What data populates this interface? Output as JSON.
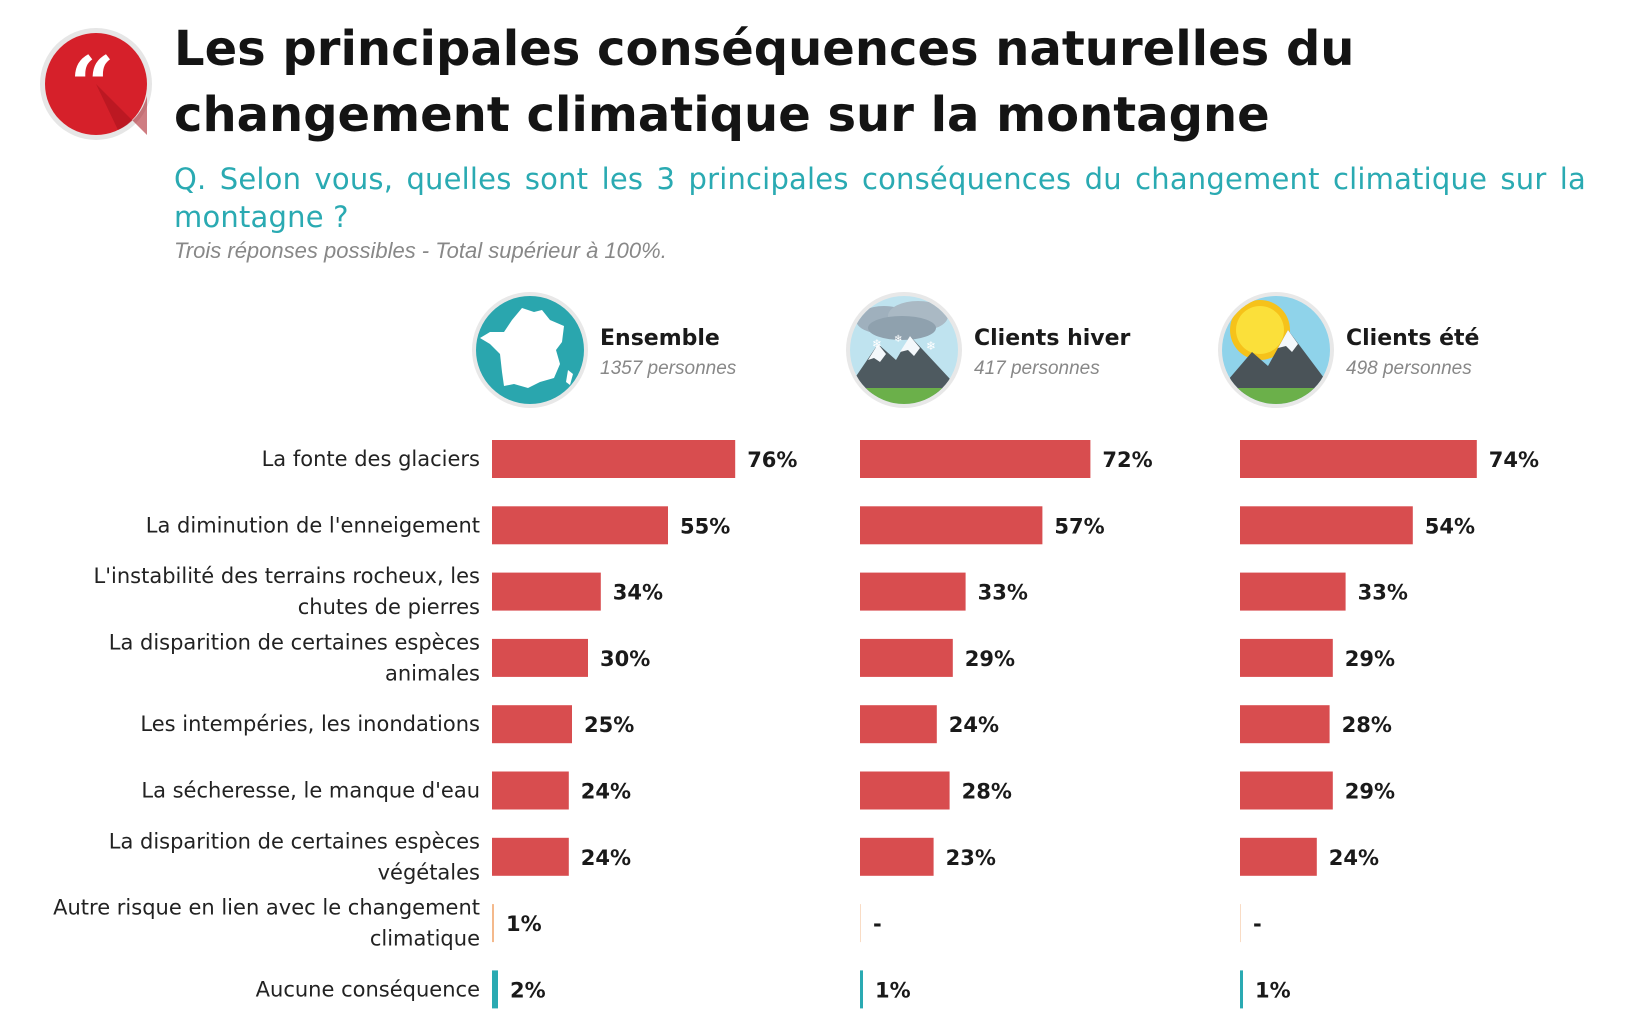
{
  "header": {
    "title": "Les principales conséquences naturelles du changement climatique sur la montagne",
    "question": "Q. Selon vous, quelles sont les 3 principales conséquences du changement climatique sur la montagne ?",
    "note": "Trois réponses possibles - Total supérieur à 100%."
  },
  "groups": [
    {
      "name": "Ensemble",
      "count": "1357 personnes",
      "icon": "france-map-icon"
    },
    {
      "name": "Clients hiver",
      "count": "417 personnes",
      "icon": "snowy-mountain-icon"
    },
    {
      "name": "Clients été",
      "count": "498 personnes",
      "icon": "sunny-mountain-icon"
    }
  ],
  "colors": {
    "bar": "#d84d4f",
    "bar_light": "#f4b98c",
    "bar_none": "#2aaab2",
    "title": "#141414",
    "question": "#2aaab2",
    "badge": "#d6202a"
  },
  "chart_data": {
    "type": "bar",
    "orientation": "horizontal",
    "categories": [
      "La fonte des glaciers",
      "La diminution de l'enneigement",
      "L'instabilité des terrains rocheux, les chutes de pierres",
      "La disparition de certaines espèces animales",
      "Les intempéries, les inondations",
      "La sécheresse, le manque d'eau",
      "La disparition de certaines espèces végétales",
      "Autre risque en lien avec le changement climatique",
      "Aucune conséquence"
    ],
    "category_lines": [
      [
        "La fonte des glaciers"
      ],
      [
        "La diminution de l'enneigement"
      ],
      [
        "L'instabilité des terrains rocheux, les",
        "chutes de pierres"
      ],
      [
        "La disparition de certaines espèces",
        "animales"
      ],
      [
        "Les intempéries, les inondations"
      ],
      [
        "La sécheresse, le manque d'eau"
      ],
      [
        "La disparition de certaines espèces",
        "végétales"
      ],
      [
        "Autre risque en lien avec le changement",
        "climatique"
      ],
      [
        "Aucune conséquence"
      ]
    ],
    "series": [
      {
        "name": "Ensemble",
        "values": [
          76,
          55,
          34,
          30,
          25,
          24,
          24,
          1,
          2
        ],
        "labels": [
          "76%",
          "55%",
          "34%",
          "30%",
          "25%",
          "24%",
          "24%",
          "1%",
          "2%"
        ]
      },
      {
        "name": "Clients hiver",
        "values": [
          72,
          57,
          33,
          29,
          24,
          28,
          23,
          0,
          1
        ],
        "labels": [
          "72%",
          "57%",
          "33%",
          "29%",
          "24%",
          "28%",
          "23%",
          "-",
          "1%"
        ]
      },
      {
        "name": "Clients été",
        "values": [
          74,
          54,
          33,
          29,
          28,
          29,
          24,
          0,
          1
        ],
        "labels": [
          "74%",
          "54%",
          "33%",
          "29%",
          "28%",
          "29%",
          "24%",
          "-",
          "1%"
        ]
      }
    ],
    "xlim": [
      0,
      100
    ]
  }
}
